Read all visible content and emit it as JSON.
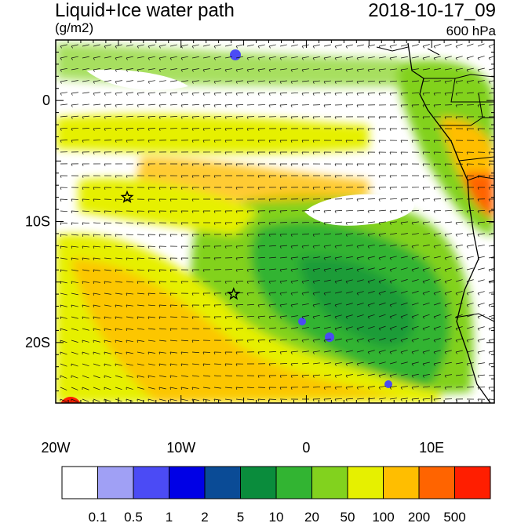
{
  "header": {
    "title": "Liquid+Ice water path",
    "units": "(g/m2)",
    "datetime": "2018-10-17_09",
    "level": "600 hPa"
  },
  "map": {
    "lon_range": [
      -20,
      15
    ],
    "lat_range": [
      -25,
      5
    ],
    "x_ticks": [
      {
        "lon": -20,
        "label": "20W"
      },
      {
        "lon": -10,
        "label": "10W"
      },
      {
        "lon": 0,
        "label": "0"
      },
      {
        "lon": 10,
        "label": "10E"
      }
    ],
    "y_ticks": [
      {
        "lat": 0,
        "label": "0"
      },
      {
        "lat": -10,
        "label": "10S"
      },
      {
        "lat": -20,
        "label": "20S"
      }
    ],
    "stars": [
      {
        "lon": -14.3,
        "lat": -8.0
      },
      {
        "lon": -5.8,
        "lat": -16.0
      }
    ]
  },
  "colorbar": {
    "colors": [
      "#ffffff",
      "#a0a0f5",
      "#4b4bf5",
      "#0000e6",
      "#0a4b96",
      "#0a8c3c",
      "#32b432",
      "#82d21e",
      "#e6f000",
      "#ffbe00",
      "#ff6400",
      "#ff1e00"
    ],
    "labels": [
      "0.1",
      "0.5",
      "1",
      "2",
      "5",
      "10",
      "20",
      "50",
      "100",
      "200",
      "500"
    ]
  }
}
